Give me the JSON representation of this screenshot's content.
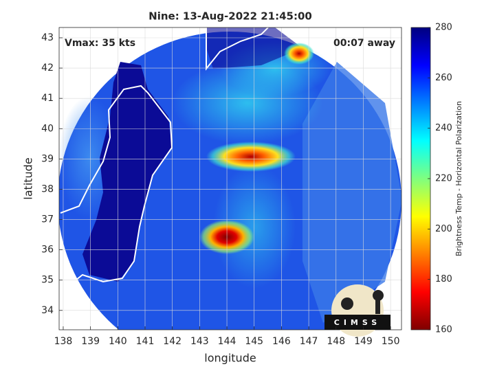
{
  "chart_data": {
    "type": "map",
    "title": "Nine: 13-Aug-2022 21:45:00",
    "x_label": "longitude",
    "y_label": "latitude",
    "xlim": [
      137.85,
      150.4
    ],
    "ylim": [
      33.36,
      43.34
    ],
    "xticks": [
      138,
      139,
      140,
      141,
      142,
      143,
      144,
      145,
      146,
      147,
      148,
      149,
      150
    ],
    "yticks": [
      34,
      35,
      36,
      37,
      38,
      39,
      40,
      41,
      42,
      43
    ],
    "grid": true,
    "annotations": [
      "Vmax: 35 kts",
      "00:07 away"
    ],
    "logo": "CIMSS",
    "colorbar": {
      "label": "Brightness Temp - Horizontal Polarization",
      "clim": [
        160,
        280
      ],
      "ticks": [
        160,
        180,
        200,
        220,
        240,
        260,
        280
      ],
      "colors": [
        "#7f0000",
        "#ff0000",
        "#ff7f00",
        "#ffff00",
        "#7fff7f",
        "#00ffff",
        "#007fff",
        "#0000ff",
        "#00007f"
      ]
    }
  }
}
